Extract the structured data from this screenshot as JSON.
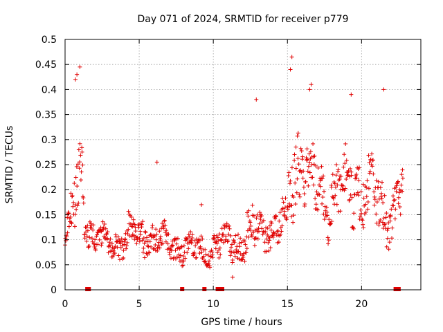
{
  "chart_data": {
    "type": "scatter",
    "title": "Day 071 of 2024, SRMTID for receiver p779",
    "xlabel": "GPS time / hours",
    "ylabel": "SRMTID / TECUs",
    "xlim": [
      0,
      24
    ],
    "ylim": [
      0,
      0.5
    ],
    "x_ticks": [
      0,
      5,
      10,
      15,
      20
    ],
    "x_tick_labels": [
      "0",
      "5",
      "10",
      "15",
      "20"
    ],
    "y_ticks": [
      0,
      0.05,
      0.1,
      0.15,
      0.2,
      0.25,
      0.3,
      0.35,
      0.4,
      0.45,
      0.5
    ],
    "y_tick_labels": [
      "0",
      "0.05",
      "0.1",
      "0.15",
      "0.2",
      "0.25",
      "0.3",
      "0.35",
      "0.4",
      "0.45",
      "0.5"
    ],
    "grid": true,
    "marker": "+",
    "color": "#e00000",
    "series": [
      {
        "name": "SRMTID",
        "profile_hours": [
          0,
          0.3,
          0.6,
          0.9,
          1.1,
          1.4,
          2,
          3,
          4,
          5,
          5.5,
          6,
          7,
          8,
          9,
          10,
          11,
          12,
          13,
          14,
          14.5,
          15,
          15.3,
          15.8,
          16.5,
          17.5,
          18.5,
          19.5,
          20.5,
          21.5,
          22.2,
          22.8
        ],
        "median": [
          0.09,
          0.13,
          0.16,
          0.2,
          0.24,
          0.14,
          0.1,
          0.09,
          0.1,
          0.11,
          0.12,
          0.1,
          0.09,
          0.085,
          0.08,
          0.08,
          0.1,
          0.1,
          0.12,
          0.13,
          0.12,
          0.14,
          0.25,
          0.27,
          0.22,
          0.18,
          0.2,
          0.21,
          0.19,
          0.16,
          0.16,
          0.2
        ],
        "spread": [
          0.03,
          0.05,
          0.08,
          0.12,
          0.13,
          0.05,
          0.04,
          0.04,
          0.05,
          0.06,
          0.06,
          0.05,
          0.04,
          0.04,
          0.04,
          0.04,
          0.05,
          0.06,
          0.07,
          0.06,
          0.06,
          0.08,
          0.13,
          0.12,
          0.1,
          0.08,
          0.09,
          0.1,
          0.09,
          0.08,
          0.07,
          0.08
        ],
        "outlier_points": [
          [
            1.0,
            0.445
          ],
          [
            15.3,
            0.465
          ],
          [
            15.2,
            0.44
          ],
          [
            16.6,
            0.41
          ],
          [
            16.5,
            0.4
          ],
          [
            21.5,
            0.4
          ],
          [
            19.3,
            0.39
          ],
          [
            12.9,
            0.38
          ],
          [
            0.7,
            0.42
          ],
          [
            0.8,
            0.43
          ],
          [
            9.2,
            0.17
          ],
          [
            6.2,
            0.255
          ],
          [
            11.3,
            0.025
          ]
        ]
      }
    ],
    "data_gaps_hours": [
      1.5,
      1.6,
      7.9,
      9.4,
      10.3,
      10.5,
      10.6,
      22.3,
      22.5
    ]
  }
}
